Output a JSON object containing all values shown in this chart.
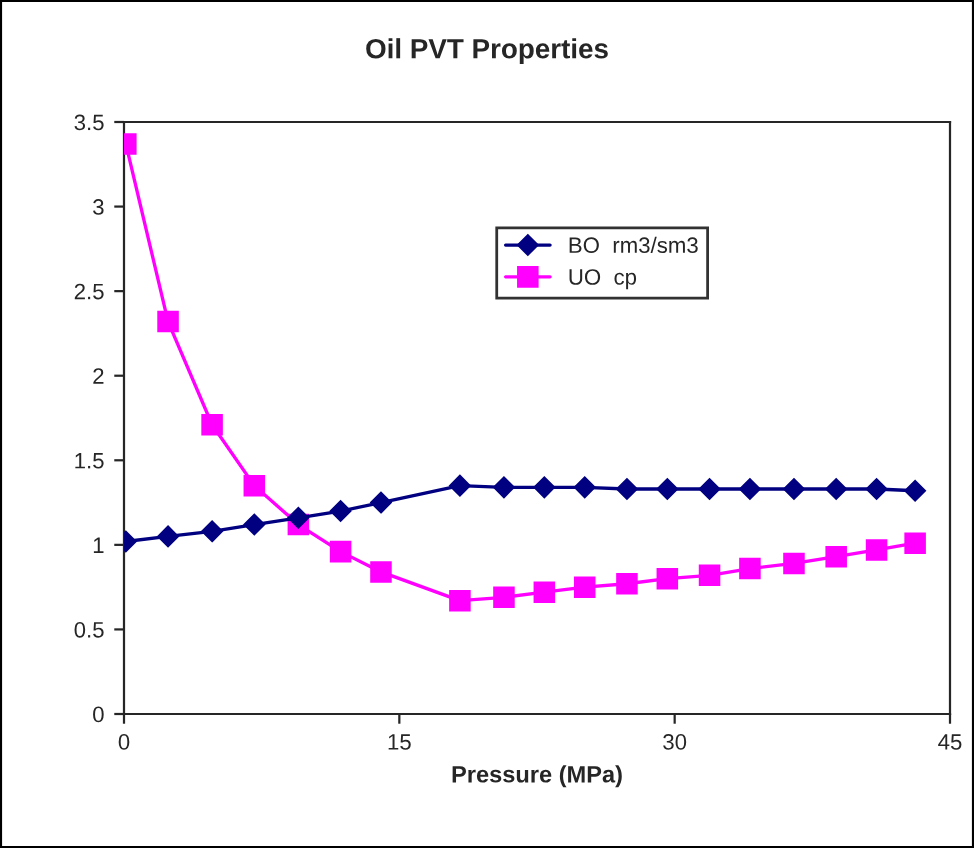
{
  "chart_data": {
    "type": "line",
    "title": "Oil PVT Properties",
    "xlabel": "Pressure (MPa)",
    "x": [
      0.1,
      2.4,
      4.8,
      7.1,
      9.5,
      11.8,
      14.0,
      18.3,
      20.7,
      22.9,
      25.1,
      27.4,
      29.6,
      31.9,
      34.1,
      36.5,
      38.8,
      41.0,
      43.1
    ],
    "series": [
      {
        "name": "BO  rm3/sm3",
        "color": "#000080",
        "marker": "diamond",
        "values": [
          1.02,
          1.05,
          1.08,
          1.12,
          1.16,
          1.2,
          1.25,
          1.35,
          1.34,
          1.34,
          1.34,
          1.33,
          1.33,
          1.33,
          1.33,
          1.33,
          1.33,
          1.33,
          1.32
        ]
      },
      {
        "name": "UO  cp",
        "color": "#ff00ff",
        "marker": "square",
        "values": [
          3.37,
          2.32,
          1.71,
          1.35,
          1.12,
          0.96,
          0.84,
          0.67,
          0.69,
          0.72,
          0.75,
          0.77,
          0.8,
          0.82,
          0.86,
          0.89,
          0.93,
          0.97,
          1.01
        ]
      }
    ],
    "xlim": [
      0,
      45
    ],
    "xticks": [
      0,
      15,
      30,
      45
    ],
    "ylim": [
      0,
      3.5
    ],
    "yticks": [
      0,
      0.5,
      1,
      1.5,
      2,
      2.5,
      3,
      3.5
    ],
    "grid": false,
    "legend": "top right"
  }
}
